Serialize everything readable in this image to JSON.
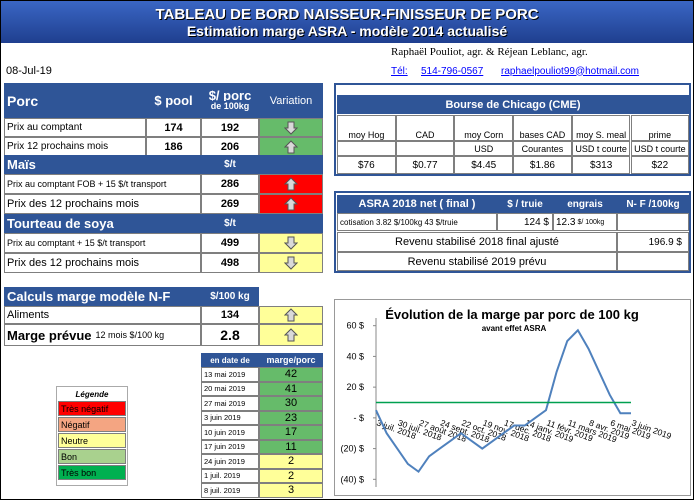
{
  "header": {
    "title": "TABLEAU DE BORD NAISSEUR-FINISSEUR DE PORC",
    "subtitle": "Estimation marge ASRA - modèle 2014 actualisé",
    "authors": "Raphaël Pouliot, agr.    &    Réjean Leblanc, agr.",
    "date": "08-Jul-19",
    "phone_label": "Tél:",
    "phone": "514-796-0567",
    "email": "raphaelpouliot99@hotmail.com"
  },
  "porc": {
    "headers": [
      "Porc",
      "$ pool",
      "$/ porc",
      "de 100kg",
      "Variation"
    ],
    "rows": [
      [
        "Prix au comptant",
        174,
        192
      ],
      [
        "Prix 12 prochains mois",
        186,
        206
      ]
    ]
  },
  "mais": {
    "headers": [
      "Maïs",
      "$/t"
    ],
    "rows": [
      [
        "Prix au comptant  FOB + 15 $/t transport",
        286
      ],
      [
        "Prix des 12 prochains mois",
        269
      ]
    ]
  },
  "soya": {
    "headers": [
      "Tourteau de soya",
      "$/t"
    ],
    "rows": [
      [
        "Prix au comptant  + 15 $/t  transport",
        499
      ],
      [
        "Prix des 12 prochains mois",
        498
      ]
    ]
  },
  "calculs": {
    "headers": [
      "Calculs marge  modèle N-F",
      "$/100 kg"
    ],
    "rows": [
      [
        "Aliments",
        134
      ],
      [
        "Marge prévue",
        "12 mois  $/100 kg",
        2.8
      ]
    ]
  },
  "bourse": {
    "title": "Bourse de Chicago (CME)",
    "columns": [
      "moy Hog",
      "CAD",
      "moy Corn",
      "bases CAD",
      "moy S. meal",
      "prime"
    ],
    "units": [
      "USD",
      "Courantes",
      "USD t courte",
      "USD t courte"
    ],
    "values": [
      "$76",
      "$0.77",
      "$4.45",
      "$1.86",
      "$313",
      "$22"
    ]
  },
  "asra": {
    "headers": [
      "ASRA 2018 net ( final )",
      "$ / truie",
      "engrais",
      "N- F /100kg"
    ],
    "cotisation": "cotisation 3.82 $/100kg  43 $/truie",
    "truie": "124  $",
    "engrais": "12.3",
    "engrais_unit": "$/ 100kg",
    "revenu_2018": "Revenu stabilisé 2018  final ajusté",
    "revenu_2018_value": "196.9 $",
    "revenu_2019": "Revenu stabilisé 2019 prévu"
  },
  "history": {
    "headers": [
      "en date de",
      "marge/porc"
    ],
    "rows": [
      [
        "13 mai 2019",
        42
      ],
      [
        "20 mai 2019",
        41
      ],
      [
        "27 mai 2019",
        30
      ],
      [
        "3 juin 2019",
        23
      ],
      [
        "10 juin 2019",
        17
      ],
      [
        "17 juin 2019",
        11
      ],
      [
        "24 juin 2019",
        2
      ],
      [
        "1 juil. 2019",
        2
      ],
      [
        "8 juil. 2019",
        3
      ]
    ]
  },
  "legend": {
    "title": "Légende",
    "items": [
      "Très négatif",
      "Négatif",
      "Neutre",
      "Bon",
      "Très bon"
    ]
  },
  "chart_data": {
    "type": "line",
    "title": "Évolution de la marge par porc de 100 kg",
    "subtitle": "avant effet ASRA",
    "x": [
      "3 juil. 2018",
      null,
      "30 juil. 2018",
      null,
      "27 août 2018",
      null,
      "24 sept. 2018",
      null,
      "22 oct. 2018",
      null,
      "19 nov. 2018",
      null,
      "17 déc. 2018",
      null,
      "14 janv. 2019",
      null,
      "11 févr. 2019",
      null,
      "11 mars 2019",
      null,
      "8 avr. 2019",
      null,
      "6 mai 2019",
      null,
      "3 juin 2019"
    ],
    "series": [
      {
        "color": "#4f81bd",
        "values": [
          5,
          -10,
          -20,
          -30,
          -35,
          -25,
          -20,
          -15,
          -10,
          -15,
          -20,
          -15,
          -10,
          -5,
          -5,
          0,
          5,
          30,
          50,
          57,
          45,
          30,
          15,
          3,
          3
        ]
      },
      {
        "color": "#00a050",
        "values": [
          10,
          10,
          10,
          10,
          10,
          10,
          10,
          10,
          10,
          10,
          10,
          10,
          10,
          10,
          10,
          10,
          10,
          10,
          10,
          10,
          10,
          10,
          10,
          10,
          10
        ]
      }
    ],
    "ylim": [
      -45,
      65
    ],
    "yticks": [
      {
        "value": 60,
        "label": "60 $"
      },
      {
        "value": 40,
        "label": "40 $"
      },
      {
        "value": 20,
        "label": "20 $"
      },
      {
        "value": 0,
        "label": "- $"
      },
      {
        "value": -20,
        "label": "(20) $"
      },
      {
        "value": -40,
        "label": "(40) $"
      }
    ]
  }
}
